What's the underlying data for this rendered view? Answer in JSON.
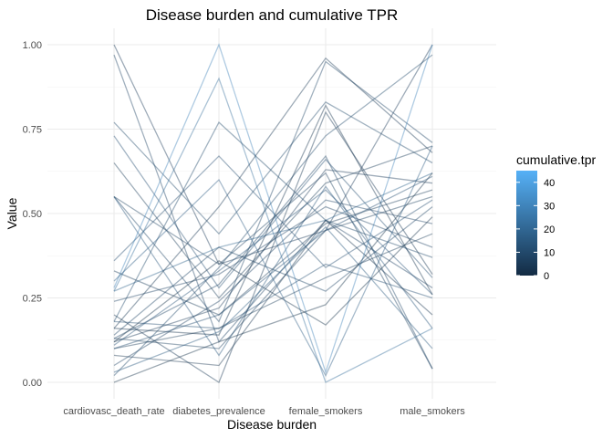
{
  "chart_data": {
    "type": "line",
    "subtype": "parallel-coordinates",
    "title": "Disease burden and cumulative TPR",
    "xlabel": "Disease burden",
    "ylabel": "Value",
    "categories": [
      "cardiovasc_death_rate",
      "diabetes_prevalence",
      "female_smokers",
      "male_smokers"
    ],
    "ylim": [
      0,
      1
    ],
    "yticks": [
      0,
      0.25,
      0.5,
      0.75,
      1.0
    ],
    "ytick_labels": [
      "0.00",
      "0.25",
      "0.50",
      "0.75",
      "1.00"
    ],
    "grid": true,
    "legend": {
      "title": "cumulative.tpr",
      "placement": "right",
      "type": "colorbar",
      "range": [
        0,
        45
      ],
      "ticks": [
        0,
        10,
        20,
        30,
        40
      ],
      "colors": [
        "#132B43",
        "#56B1F7"
      ]
    },
    "series": [
      {
        "values": [
          1.0,
          0.35,
          0.45,
          1.0
        ],
        "tpr": 5
      },
      {
        "values": [
          0.97,
          0.12,
          0.48,
          0.28
        ],
        "tpr": 8
      },
      {
        "values": [
          0.77,
          0.44,
          0.83,
          0.65
        ],
        "tpr": 10
      },
      {
        "values": [
          0.73,
          0.28,
          0.66,
          0.31
        ],
        "tpr": 12
      },
      {
        "values": [
          0.65,
          0.25,
          0.59,
          0.7
        ],
        "tpr": 6
      },
      {
        "values": [
          0.55,
          0.18,
          0.95,
          0.71
        ],
        "tpr": 9
      },
      {
        "values": [
          0.55,
          0.08,
          0.58,
          0.16
        ],
        "tpr": 14
      },
      {
        "values": [
          0.55,
          0.35,
          0.62,
          0.04
        ],
        "tpr": 7
      },
      {
        "values": [
          0.36,
          0.67,
          0.34,
          0.54
        ],
        "tpr": 11
      },
      {
        "values": [
          0.33,
          0.2,
          0.47,
          0.57
        ],
        "tpr": 6
      },
      {
        "values": [
          0.28,
          1.0,
          0.03,
          1.0
        ],
        "tpr": 30
      },
      {
        "values": [
          0.27,
          0.4,
          0.48,
          0.62
        ],
        "tpr": 18
      },
      {
        "values": [
          0.27,
          0.9,
          0.0,
          0.16
        ],
        "tpr": 22
      },
      {
        "values": [
          0.24,
          0.32,
          0.52,
          0.4
        ],
        "tpr": 8
      },
      {
        "values": [
          0.18,
          0.77,
          0.48,
          0.37
        ],
        "tpr": 10
      },
      {
        "values": [
          0.18,
          0.16,
          0.35,
          0.25
        ],
        "tpr": 12
      },
      {
        "values": [
          0.16,
          0.52,
          0.96,
          0.68
        ],
        "tpr": 4
      },
      {
        "values": [
          0.14,
          0.4,
          0.27,
          0.52
        ],
        "tpr": 9
      },
      {
        "values": [
          0.13,
          0.1,
          0.45,
          0.55
        ],
        "tpr": 7
      },
      {
        "values": [
          0.12,
          0.22,
          0.63,
          0.59
        ],
        "tpr": 5
      },
      {
        "values": [
          0.11,
          0.33,
          0.57,
          0.26
        ],
        "tpr": 13
      },
      {
        "values": [
          0.1,
          0.16,
          0.31,
          0.44
        ],
        "tpr": 6
      },
      {
        "values": [
          0.08,
          0.05,
          0.48,
          0.2
        ],
        "tpr": 3
      },
      {
        "values": [
          0.05,
          0.24,
          0.54,
          0.47
        ],
        "tpr": 8
      },
      {
        "values": [
          0.03,
          0.15,
          0.46,
          0.1
        ],
        "tpr": 15
      },
      {
        "values": [
          0.02,
          0.34,
          0.73,
          0.97
        ],
        "tpr": 10
      },
      {
        "values": [
          0.0,
          0.12,
          0.23,
          0.62
        ],
        "tpr": 2
      },
      {
        "values": [
          0.2,
          0.0,
          0.8,
          0.32
        ],
        "tpr": 4
      },
      {
        "values": [
          0.16,
          0.14,
          0.82,
          0.26
        ],
        "tpr": 3
      },
      {
        "values": [
          0.13,
          0.29,
          0.67,
          0.04
        ],
        "tpr": 9
      },
      {
        "values": [
          0.12,
          0.36,
          0.17,
          0.49
        ],
        "tpr": 2
      },
      {
        "values": [
          0.3,
          0.6,
          0.02,
          0.7
        ],
        "tpr": 16
      },
      {
        "values": [
          0.1,
          0.2,
          0.45,
          0.61
        ],
        "tpr": 11
      }
    ]
  }
}
